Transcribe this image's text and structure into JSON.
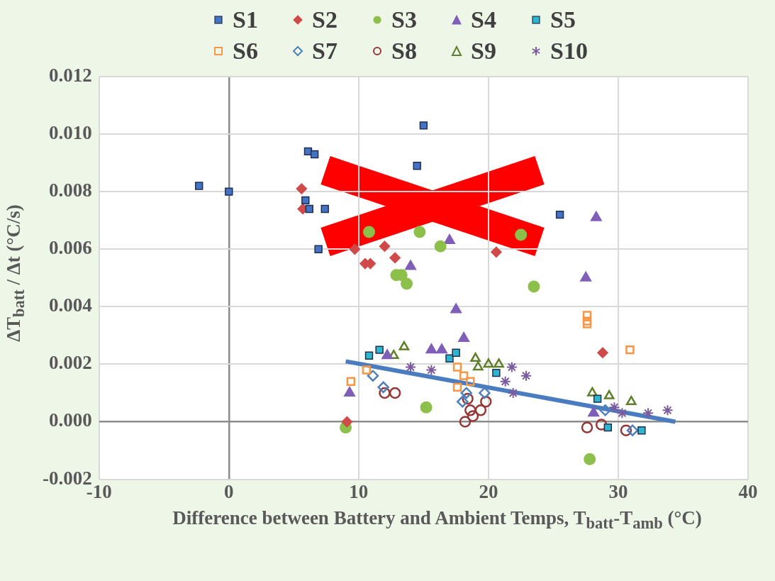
{
  "chart_data": {
    "type": "scatter",
    "xlabel": "Difference between Battery and Ambient Temps, T$_{batt}$-T$_{amb}$ (°C)",
    "ylabel": "ΔT$_{batt}$ / Δt (°C/s)",
    "xlim": [
      -10,
      40
    ],
    "xticks": [
      -10,
      0,
      10,
      20,
      30,
      40
    ],
    "ylim": [
      -0.002,
      0.012
    ],
    "yticks": [
      {
        "value": -0.002,
        "label": "-0.002"
      },
      {
        "value": 0,
        "label": "0.000"
      },
      {
        "value": 0.002,
        "label": "0.002"
      },
      {
        "value": 0.004,
        "label": "0.004"
      },
      {
        "value": 0.006,
        "label": "0.006"
      },
      {
        "value": 0.008,
        "label": "0.008"
      },
      {
        "value": 0.01,
        "label": "0.010"
      },
      {
        "value": 0.012,
        "label": "0.012"
      }
    ],
    "grid": true,
    "legend": "top",
    "series": [
      {
        "name": "S1",
        "color": "#4472c4",
        "marker": "square",
        "x": [
          -2.3,
          0,
          6.1,
          6.6,
          5.9,
          6.2,
          7.4,
          6.9,
          15.0,
          14.5,
          25.5
        ],
        "values": [
          0.0082,
          0.008,
          0.0094,
          0.0093,
          0.0077,
          0.0074,
          0.0074,
          0.006,
          0.0103,
          0.0089,
          0.0072
        ]
      },
      {
        "name": "S2",
        "color": "#d04a4a",
        "marker": "diamond",
        "x": [
          5.6,
          5.7,
          9.7,
          10.5,
          10.9,
          12.0,
          12.8,
          20.6,
          28.8,
          9.1
        ],
        "values": [
          0.0081,
          0.0074,
          0.006,
          0.0055,
          0.0055,
          0.0061,
          0.0057,
          0.0059,
          0.0024,
          0.0
        ]
      },
      {
        "name": "S3",
        "color": "#8dc04a",
        "marker": "circle",
        "x": [
          9.0,
          10.8,
          14.7,
          16.3,
          12.9,
          13.3,
          13.7,
          22.5,
          23.5,
          15.2,
          27.8
        ],
        "values": [
          -0.0002,
          0.0066,
          0.0066,
          0.0061,
          0.0051,
          0.0051,
          0.0048,
          0.0065,
          0.0047,
          0.0005,
          -0.0013
        ]
      },
      {
        "name": "S4",
        "color": "#7f5fb8",
        "marker": "triangle",
        "x": [
          9.3,
          12.2,
          14.0,
          17.0,
          17.5,
          18.1,
          15.6,
          16.4,
          27.5,
          28.3,
          28.1
        ],
        "values": [
          0.001,
          0.0023,
          0.0054,
          0.0063,
          0.0039,
          0.0029,
          0.0025,
          0.0025,
          0.005,
          0.0071,
          0.0003
        ]
      },
      {
        "name": "S5",
        "color": "#2eb6cf",
        "marker": "square",
        "x": [
          10.8,
          11.6,
          17.0,
          17.5,
          20.6,
          28.4,
          29.2,
          31.8
        ],
        "values": [
          0.0023,
          0.0025,
          0.0022,
          0.0024,
          0.0017,
          0.0008,
          -0.0002,
          -0.0003
        ]
      },
      {
        "name": "S6",
        "color": "#f79646",
        "marker": "square-open",
        "x": [
          9.4,
          10.6,
          17.6,
          18.1,
          18.6,
          17.6,
          27.6,
          27.6,
          27.6,
          30.9
        ],
        "values": [
          0.0014,
          0.0018,
          0.0019,
          0.0016,
          0.0014,
          0.0012,
          0.0037,
          0.0035,
          0.0034,
          0.0025
        ]
      },
      {
        "name": "S7",
        "color": "#4f81bd",
        "marker": "diamond-open",
        "x": [
          11.1,
          11.9,
          18.3,
          18.0,
          19.7,
          29.0,
          31.1
        ],
        "values": [
          0.0016,
          0.0012,
          0.001,
          0.0007,
          0.001,
          0.0004,
          -0.0003
        ]
      },
      {
        "name": "S8",
        "color": "#953735",
        "marker": "circle-open",
        "x": [
          12.0,
          12.8,
          18.4,
          18.6,
          18.2,
          18.8,
          19.4,
          19.8,
          27.6,
          28.7,
          30.6
        ],
        "values": [
          0.001,
          0.001,
          0.0008,
          0.0004,
          0.0,
          0.0002,
          0.0004,
          0.0007,
          -0.0002,
          -0.0001,
          -0.0003
        ]
      },
      {
        "name": "S9",
        "color": "#5f7f2a",
        "marker": "triangle-open",
        "x": [
          12.7,
          13.5,
          19.0,
          19.2,
          20.0,
          20.8,
          28.0,
          29.3,
          31.0
        ],
        "values": [
          0.0023,
          0.0026,
          0.0022,
          0.0019,
          0.002,
          0.002,
          0.001,
          0.0009,
          0.0007
        ]
      },
      {
        "name": "S10",
        "color": "#7a5c9e",
        "marker": "cross",
        "x": [
          14.0,
          15.6,
          21.8,
          22.9,
          21.3,
          21.9,
          29.7,
          30.3,
          32.3,
          33.8
        ],
        "values": [
          0.0019,
          0.0018,
          0.0019,
          0.0016,
          0.0014,
          0.001,
          0.0005,
          0.0003,
          0.0003,
          0.0004
        ]
      },
      {
        "type": "line",
        "color": "#4a7cc0",
        "marker": "none",
        "line_style": "solid",
        "x": [
          9.0,
          34.4
        ],
        "values": [
          0.0021,
          0.0
        ]
      }
    ]
  }
}
